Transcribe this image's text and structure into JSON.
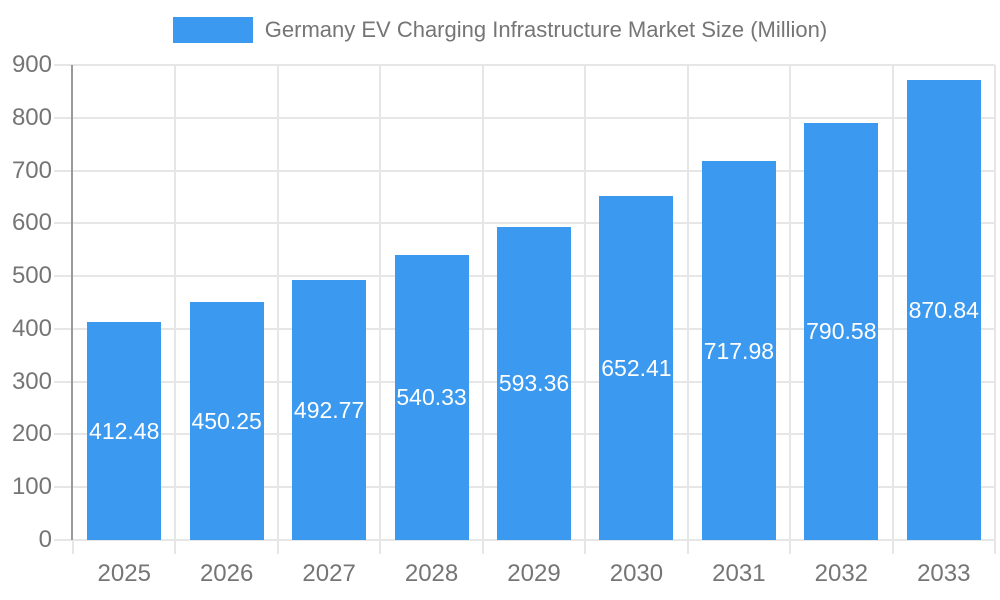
{
  "legend": {
    "label": "Germany EV Charging Infrastructure Market Size (Million)"
  },
  "chart_data": {
    "type": "bar",
    "title": "Germany EV Charging Infrastructure Market Size (Million)",
    "categories": [
      "2025",
      "2026",
      "2027",
      "2028",
      "2029",
      "2030",
      "2031",
      "2032",
      "2033"
    ],
    "values": [
      412.48,
      450.25,
      492.77,
      540.33,
      593.36,
      652.41,
      717.98,
      790.58,
      870.84
    ],
    "value_labels": [
      "412.48",
      "450.25",
      "492.77",
      "540.33",
      "593.36",
      "652.41",
      "717.98",
      "790.58",
      "870.84"
    ],
    "xlabel": "",
    "ylabel": "",
    "ylim": [
      0,
      900
    ],
    "ytick_step": 100,
    "ytick_labels": [
      "0",
      "100",
      "200",
      "300",
      "400",
      "500",
      "600",
      "700",
      "800",
      "900"
    ],
    "grid": true,
    "legend_position": "top-center"
  },
  "colors": {
    "bar": "#3b99ef",
    "grid": "#e6e6e6",
    "axis": "#9a9a9a",
    "tick_text": "#757575",
    "value_label_text": "#ffffff",
    "background": "#ffffff"
  }
}
